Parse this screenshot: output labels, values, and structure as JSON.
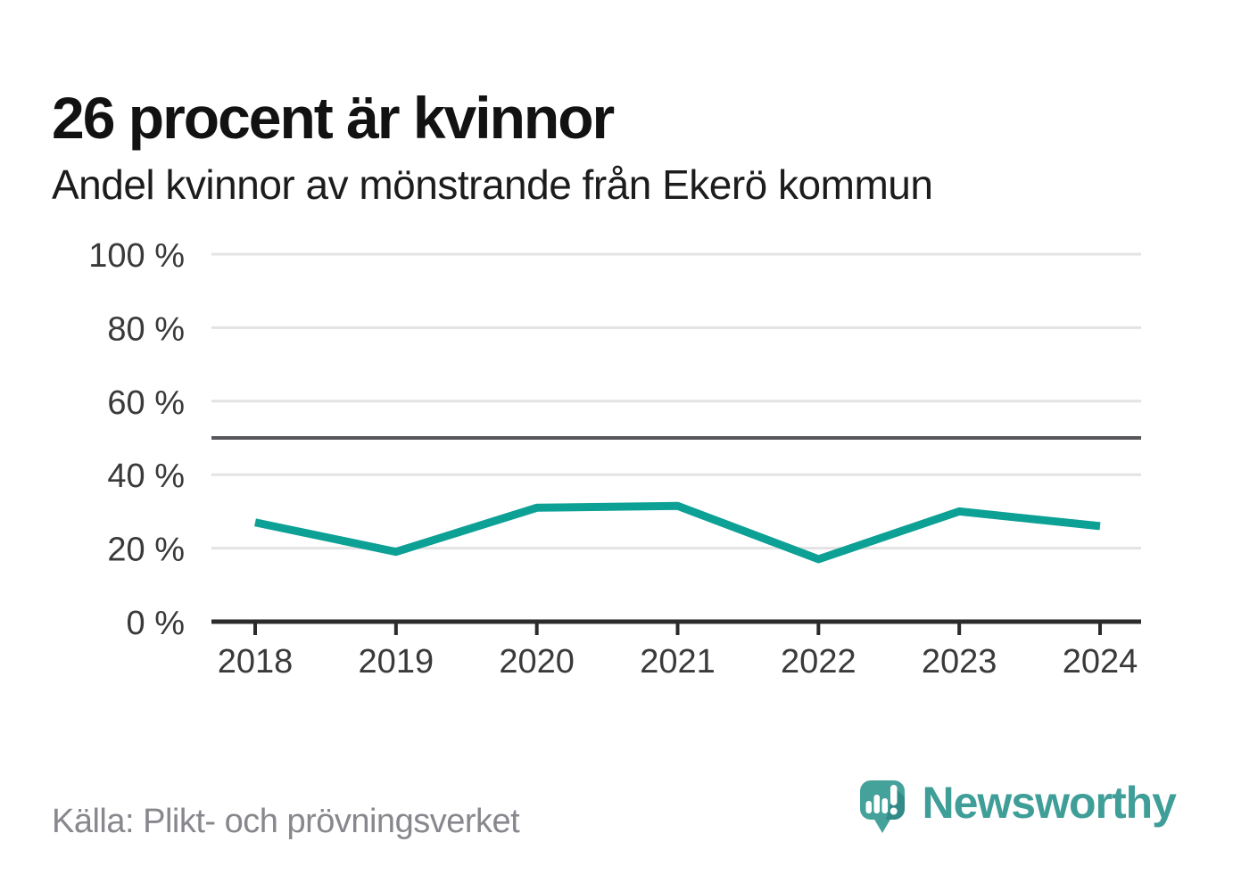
{
  "header": {
    "title": "26 procent är kvinnor",
    "subtitle": "Andel kvinnor av mönstrande från Ekerö kommun"
  },
  "chart_data": {
    "type": "line",
    "categories": [
      "2018",
      "2019",
      "2020",
      "2021",
      "2022",
      "2023",
      "2024"
    ],
    "series": [
      {
        "name": "Andel kvinnor av mönstrande",
        "values": [
          27,
          19,
          31,
          31.5,
          17,
          30,
          26
        ]
      }
    ],
    "title": "26 procent är kvinnor",
    "subtitle": "Andel kvinnor av mönstrande från Ekerö kommun",
    "xlabel": "",
    "ylabel": "",
    "ylim": [
      0,
      100
    ],
    "yticks": [
      0,
      20,
      40,
      60,
      80,
      100
    ],
    "ytick_suffix": " %",
    "grid": true,
    "reference_line": 50,
    "legend_position": "none"
  },
  "footer": {
    "source_label": "Källa: Plikt- och prövningsverket",
    "brand_name": "Newsworthy"
  },
  "colors": {
    "line": "#0da196",
    "grid": "#e3e3e3",
    "axis": "#2b2b2b",
    "reference_line": "#57575c",
    "tick_label": "#3a3a3a",
    "title_text": "#121212",
    "source_text": "#87878d",
    "brand_teal": "#3f9e98",
    "logo_fill": "#45a29b",
    "logo_shadow": "#328b86"
  }
}
